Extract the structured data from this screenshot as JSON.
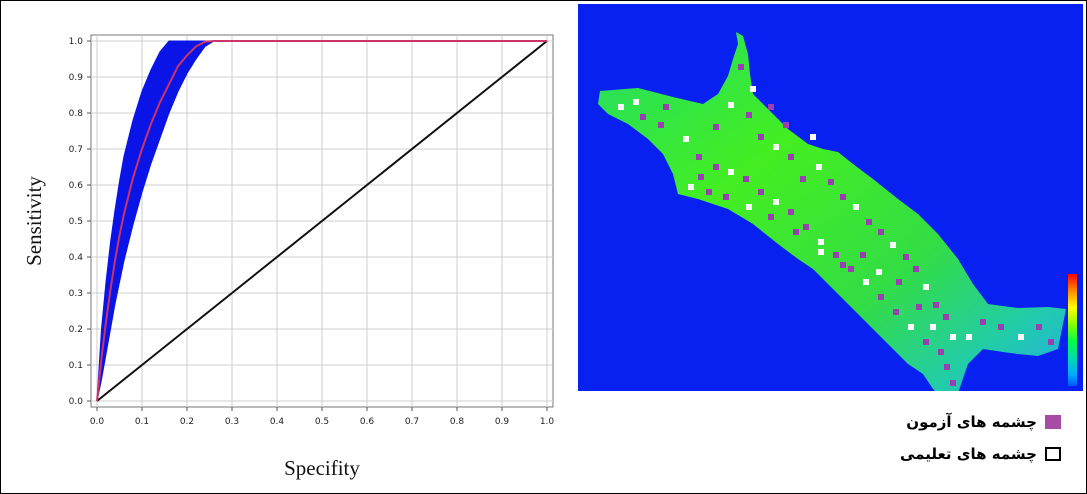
{
  "chart_data": [
    {
      "type": "line",
      "xlabel": "Specifity",
      "ylabel": "Sensitivity",
      "xlim": [
        0.0,
        1.0
      ],
      "ylim": [
        0.0,
        1.0
      ],
      "x_ticks": [
        "0.0",
        "0.1",
        "0.2",
        "0.3",
        "0.4",
        "0.5",
        "0.6",
        "0.7",
        "0.8",
        "0.9",
        "1.0"
      ],
      "y_ticks": [
        "0.0",
        "0.1",
        "0.2",
        "0.3",
        "0.4",
        "0.5",
        "0.6",
        "0.7",
        "0.8",
        "0.9",
        "1.0"
      ],
      "grid": true,
      "series": [
        {
          "role": "roc-curve",
          "color": "#cc3366",
          "x": [
            0,
            0.005,
            0.01,
            0.02,
            0.03,
            0.04,
            0.05,
            0.06,
            0.08,
            0.1,
            0.12,
            0.14,
            0.16,
            0.18,
            0.2,
            0.22,
            0.24,
            0.26,
            0.4,
            0.6,
            0.8,
            1.0
          ],
          "y": [
            0,
            0.06,
            0.12,
            0.22,
            0.31,
            0.39,
            0.46,
            0.52,
            0.62,
            0.7,
            0.77,
            0.83,
            0.88,
            0.93,
            0.96,
            0.985,
            0.998,
            1.0,
            1.0,
            1.0,
            1.0,
            1.0
          ]
        },
        {
          "role": "confidence-band",
          "color": "#0a14e6",
          "x": [
            0,
            0.01,
            0.02,
            0.03,
            0.04,
            0.05,
            0.06,
            0.08,
            0.1,
            0.12,
            0.14,
            0.16,
            0.18,
            0.2,
            0.22,
            0.24,
            0.26
          ],
          "upper": [
            0.0,
            0.2,
            0.33,
            0.44,
            0.53,
            0.61,
            0.68,
            0.78,
            0.86,
            0.92,
            0.97,
            1.0,
            1.0,
            1.0,
            1.0,
            1.0,
            1.0
          ],
          "lower": [
            0.0,
            0.06,
            0.13,
            0.2,
            0.27,
            0.33,
            0.39,
            0.49,
            0.58,
            0.66,
            0.73,
            0.8,
            0.86,
            0.91,
            0.95,
            0.985,
            1.0
          ]
        },
        {
          "role": "reference-diagonal",
          "color": "#111111",
          "x": [
            0,
            1
          ],
          "y": [
            0,
            1
          ]
        }
      ]
    }
  ],
  "map": {
    "type": "raster-map",
    "background_color": "#0820f0",
    "ramp_colors": [
      "#ff0000",
      "#ff8800",
      "#ffff00",
      "#88ff00",
      "#00ff44",
      "#00ddaa",
      "#00aaff",
      "#0055ff"
    ]
  },
  "legend": {
    "items": [
      {
        "label": "چشمه های آزمون",
        "swatch_fill": "#a64ca6",
        "swatch_border": "#a64ca6"
      },
      {
        "label": "چشمه های تعلیمی",
        "swatch_fill": "#ffffff",
        "swatch_border": "#000000"
      }
    ]
  }
}
